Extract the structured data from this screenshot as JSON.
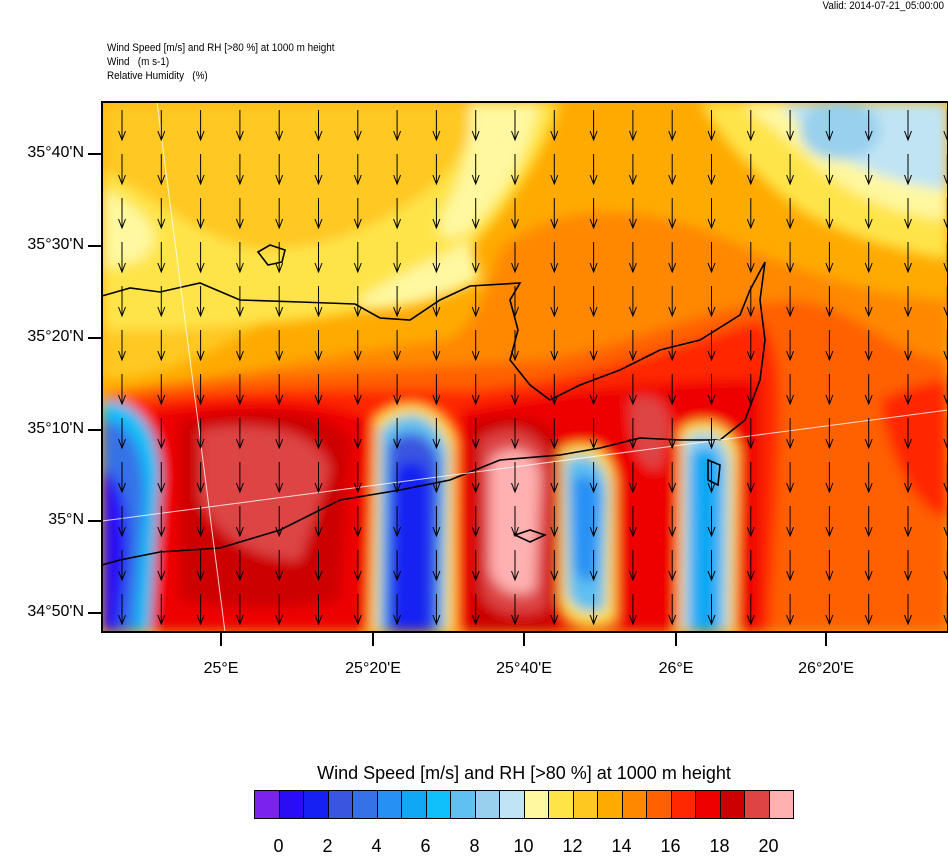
{
  "valid": "Valid: 2014-07-21_05:00:00",
  "header": {
    "line1": "Wind Speed [m/s] and RH [>80 %] at 1000 m height",
    "line2": "Wind   (m s-1)",
    "line3": "Relative Humidity   (%)"
  },
  "lat_labels": [
    "35°40'N",
    "35°30'N",
    "35°20'N",
    "35°10'N",
    "35°N",
    "34°50'N"
  ],
  "lon_labels": [
    "25°E",
    "25°20'E",
    "25°40'E",
    "26°E",
    "26°20'E"
  ],
  "colorbar": {
    "title": "Wind Speed [m/s] and RH [>80 %] at 1000 m height",
    "colors": [
      "#7B22EE",
      "#2A0CF5",
      "#1520F2",
      "#3A55E0",
      "#3572E8",
      "#2690F5",
      "#10A8F5",
      "#10C0F8",
      "#60C0F0",
      "#98D0EE",
      "#C0E4F4",
      "#FFF8A0",
      "#FFE448",
      "#FFC820",
      "#FFAA00",
      "#FF8800",
      "#FF6000",
      "#FF2800",
      "#EE0000",
      "#CC0000",
      "#DD4444",
      "#FFB0B0"
    ],
    "labels": [
      "0",
      "2",
      "4",
      "6",
      "8",
      "10",
      "12",
      "14",
      "16",
      "18",
      "20"
    ]
  },
  "wind_direction": "north-to-south"
}
